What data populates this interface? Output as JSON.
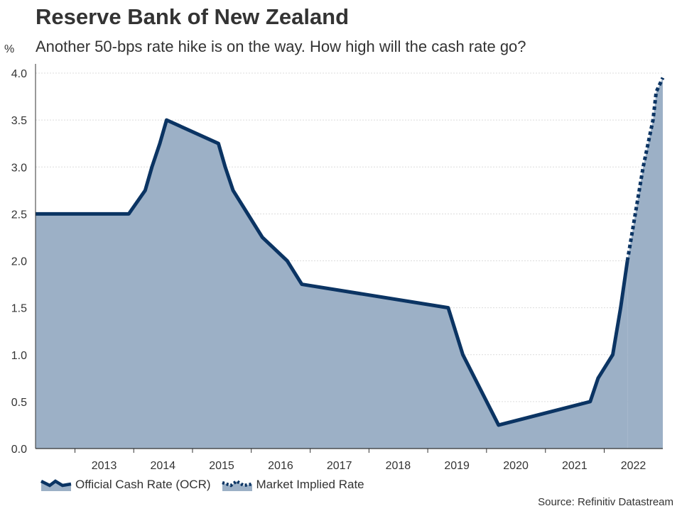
{
  "header": {
    "title": "Reserve Bank of New Zealand",
    "subtitle": "Another 50-bps rate hike is on the way. How high will the cash rate go?",
    "unit": "%"
  },
  "source": "Source: Refinitiv Datastream",
  "colors": {
    "area_fill": "#9cb0c6",
    "line": "#0b3463",
    "axis": "#333333",
    "grid": "#dcdcdc"
  },
  "chart_data": {
    "type": "line",
    "title": "Reserve Bank of New Zealand",
    "subtitle": "Another 50-bps rate hike is on the way. How high will the cash rate go?",
    "ylabel": "%",
    "xlabel": "",
    "ylim": [
      0,
      4.0
    ],
    "xlim": [
      "2012-05-01",
      "2022-12-31"
    ],
    "yticks": [
      "0.0",
      "0.5",
      "1.0",
      "1.5",
      "2.0",
      "2.5",
      "3.0",
      "3.5",
      "4.0"
    ],
    "xticks": [
      "2013",
      "2014",
      "2015",
      "2016",
      "2017",
      "2018",
      "2019",
      "2020",
      "2021",
      "2022"
    ],
    "grid": true,
    "legend_position": "bottom-left",
    "series": [
      {
        "name": "Official Cash Rate (OCR)",
        "style": "solid-area",
        "points": [
          [
            "2012-05-01",
            2.5
          ],
          [
            "2013-12-01",
            2.5
          ],
          [
            "2014-03-13",
            2.75
          ],
          [
            "2014-04-24",
            3.0
          ],
          [
            "2014-06-12",
            3.25
          ],
          [
            "2014-07-24",
            3.5
          ],
          [
            "2015-06-11",
            3.25
          ],
          [
            "2015-07-23",
            3.0
          ],
          [
            "2015-09-10",
            2.75
          ],
          [
            "2015-12-10",
            2.5
          ],
          [
            "2016-03-10",
            2.25
          ],
          [
            "2016-08-11",
            2.0
          ],
          [
            "2016-11-10",
            1.75
          ],
          [
            "2019-05-08",
            1.5
          ],
          [
            "2019-08-07",
            1.0
          ],
          [
            "2020-03-16",
            0.25
          ],
          [
            "2021-10-06",
            0.5
          ],
          [
            "2021-11-24",
            0.75
          ],
          [
            "2022-02-23",
            1.0
          ],
          [
            "2022-04-13",
            1.5
          ],
          [
            "2022-05-25",
            2.0
          ]
        ]
      },
      {
        "name": "Market Implied Rate",
        "style": "dotted",
        "points": [
          [
            "2022-05-25",
            2.0
          ],
          [
            "2022-07-13",
            2.5
          ],
          [
            "2022-08-31",
            3.0
          ],
          [
            "2022-10-31",
            3.5
          ],
          [
            "2022-11-20",
            3.8
          ],
          [
            "2022-12-31",
            3.95
          ]
        ]
      }
    ]
  }
}
